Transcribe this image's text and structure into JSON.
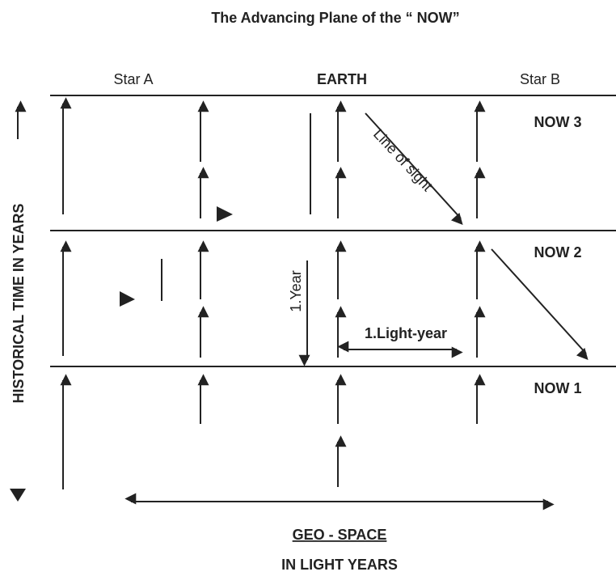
{
  "title": "The Advancing Plane of the “ NOW”",
  "columns": [
    "Star A",
    "EARTH",
    "Star B"
  ],
  "planes": [
    "NOW 3",
    "NOW 2",
    "NOW 1"
  ],
  "annotations": {
    "line_of_sight": "Line of sight",
    "year": "1.Year",
    "light_year": "1.Light-year"
  },
  "y_axis_label": "HISTORICAL TIME IN YEARS",
  "x_axis_label": {
    "line1": "GEO - SPACE",
    "line2": "IN LIGHT YEARS"
  }
}
